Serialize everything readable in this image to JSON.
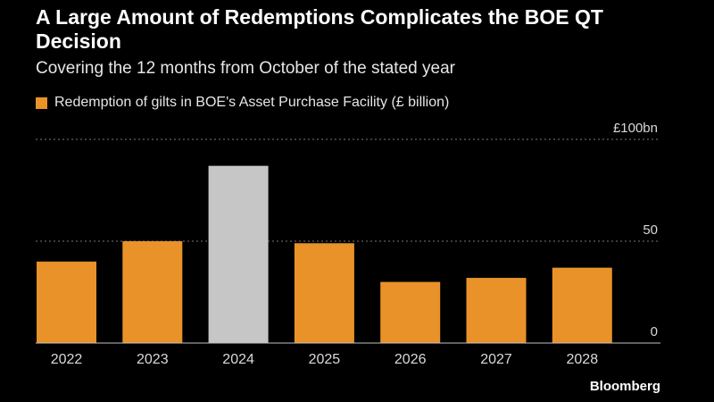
{
  "header": {
    "title": "A Large Amount of Redemptions Complicates the BOE QT Decision",
    "subtitle": "Covering the 12 months from October of the stated year"
  },
  "legend": {
    "label": "Redemption of gilts in BOE's Asset Purchase Facility (£ billion)"
  },
  "footer": {
    "brand": "Bloomberg"
  },
  "colors": {
    "primary": "#e89229",
    "highlight": "#c6c6c6",
    "background": "#000000"
  },
  "chart_data": {
    "type": "bar",
    "title": "A Large Amount of Redemptions Complicates the BOE QT Decision",
    "subtitle": "Covering the 12 months from October of the stated year",
    "xlabel": "",
    "ylabel": "",
    "ylim": [
      0,
      100
    ],
    "y_ticks": [
      {
        "value": 0,
        "label": "0"
      },
      {
        "value": 50,
        "label": "50"
      },
      {
        "value": 100,
        "label": "£100bn"
      }
    ],
    "categories": [
      "2022",
      "2023",
      "2024",
      "2025",
      "2026",
      "2027",
      "2028"
    ],
    "series": [
      {
        "name": "Redemption of gilts in BOE's Asset Purchase Facility (£ billion)",
        "values": [
          40,
          50,
          87,
          49,
          30,
          32,
          37
        ]
      }
    ],
    "highlight_category": "2024",
    "grid": true,
    "legend_position": "top-left"
  }
}
